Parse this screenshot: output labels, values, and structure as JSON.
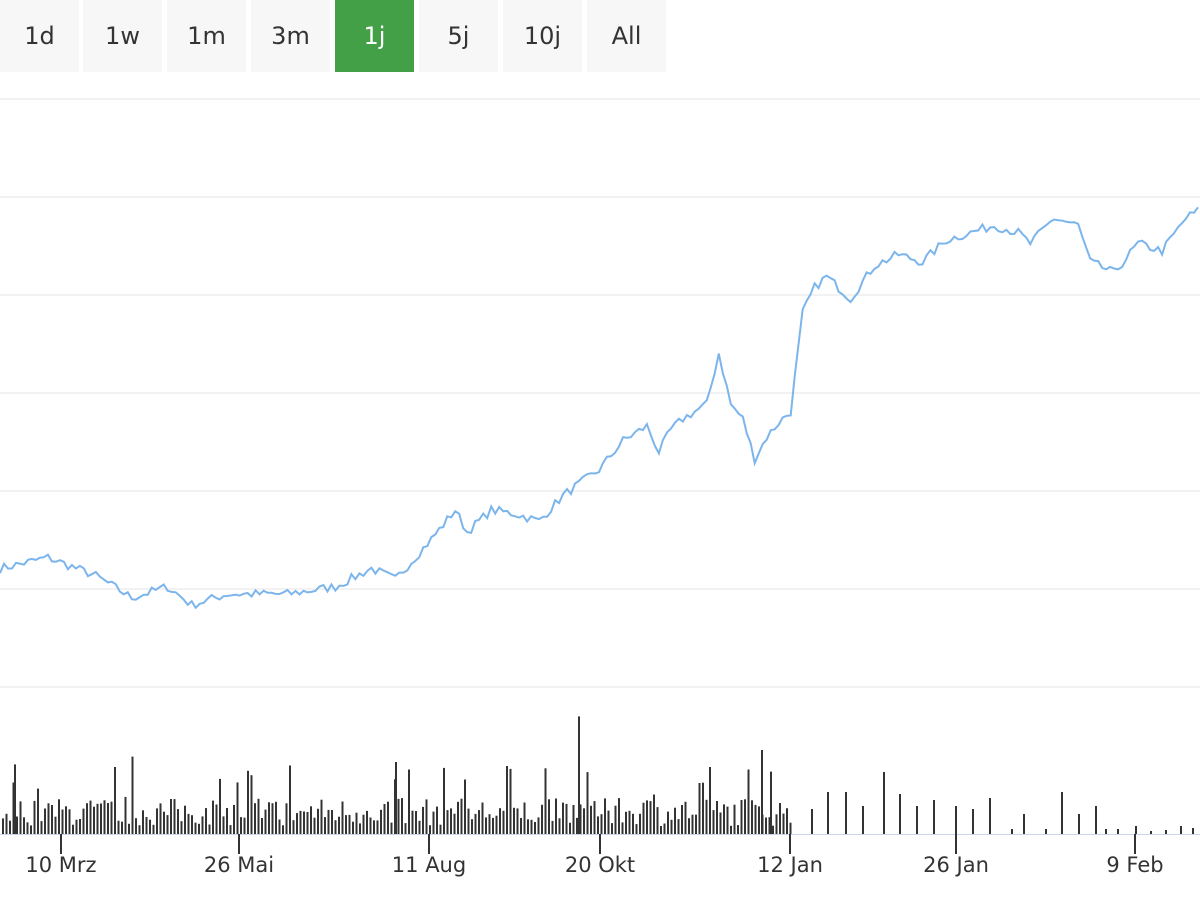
{
  "range_selector": {
    "buttons": [
      {
        "label": "1d",
        "active": false
      },
      {
        "label": "1w",
        "active": false
      },
      {
        "label": "1m",
        "active": false
      },
      {
        "label": "3m",
        "active": false
      },
      {
        "label": "1j",
        "active": true
      },
      {
        "label": "5j",
        "active": false
      },
      {
        "label": "10j",
        "active": false
      },
      {
        "label": "All",
        "active": false
      }
    ],
    "active_color": "#43a047",
    "inactive_color": "#f7f7f7"
  },
  "chart_data": {
    "type": "line",
    "title": "",
    "xlabel": "",
    "ylabel": "",
    "grid": true,
    "legend": "none",
    "line_color": "#7cb5ec",
    "volume_color": "#333333",
    "x_tick_labels": [
      "10 Mrz",
      "26 Mai",
      "11 Aug",
      "20 Okt",
      "12 Jan",
      "26 Jan",
      "9 Feb"
    ],
    "price_profile": [
      [
        0,
        0.1
      ],
      [
        4,
        0.13
      ],
      [
        8,
        0.08
      ],
      [
        11,
        0.02
      ],
      [
        14,
        0.05
      ],
      [
        16,
        0.0
      ],
      [
        19,
        0.03
      ],
      [
        24,
        0.03
      ],
      [
        28,
        0.05
      ],
      [
        31,
        0.1
      ],
      [
        33,
        0.07
      ],
      [
        36,
        0.18
      ],
      [
        38,
        0.26
      ],
      [
        39,
        0.2
      ],
      [
        41,
        0.26
      ],
      [
        43,
        0.25
      ],
      [
        45,
        0.23
      ],
      [
        47,
        0.3
      ],
      [
        50,
        0.37
      ],
      [
        52,
        0.45
      ],
      [
        54,
        0.49
      ],
      [
        55,
        0.42
      ],
      [
        56,
        0.48
      ],
      [
        57,
        0.51
      ],
      [
        59,
        0.55
      ],
      [
        60,
        0.69
      ],
      [
        61,
        0.55
      ],
      [
        62,
        0.51
      ],
      [
        63,
        0.4
      ],
      [
        64,
        0.46
      ],
      [
        65,
        0.5
      ],
      [
        66,
        0.53
      ],
      [
        67,
        0.8
      ],
      [
        68,
        0.87
      ],
      [
        69,
        0.9
      ],
      [
        71,
        0.84
      ],
      [
        73,
        0.93
      ],
      [
        75,
        0.96
      ],
      [
        77,
        0.94
      ],
      [
        79,
        1.0
      ],
      [
        83,
        1.04
      ],
      [
        85,
        1.02
      ],
      [
        86,
        0.99
      ],
      [
        88,
        1.06
      ],
      [
        90,
        1.04
      ],
      [
        91,
        0.94
      ],
      [
        93,
        0.91
      ],
      [
        95,
        0.99
      ],
      [
        97,
        0.97
      ],
      [
        99,
        1.06
      ],
      [
        100,
        1.08
      ]
    ],
    "y_grid_lines": 7,
    "volume_spikes": [
      0.58,
      0.5,
      0.51,
      0.47,
      0.82
    ]
  }
}
